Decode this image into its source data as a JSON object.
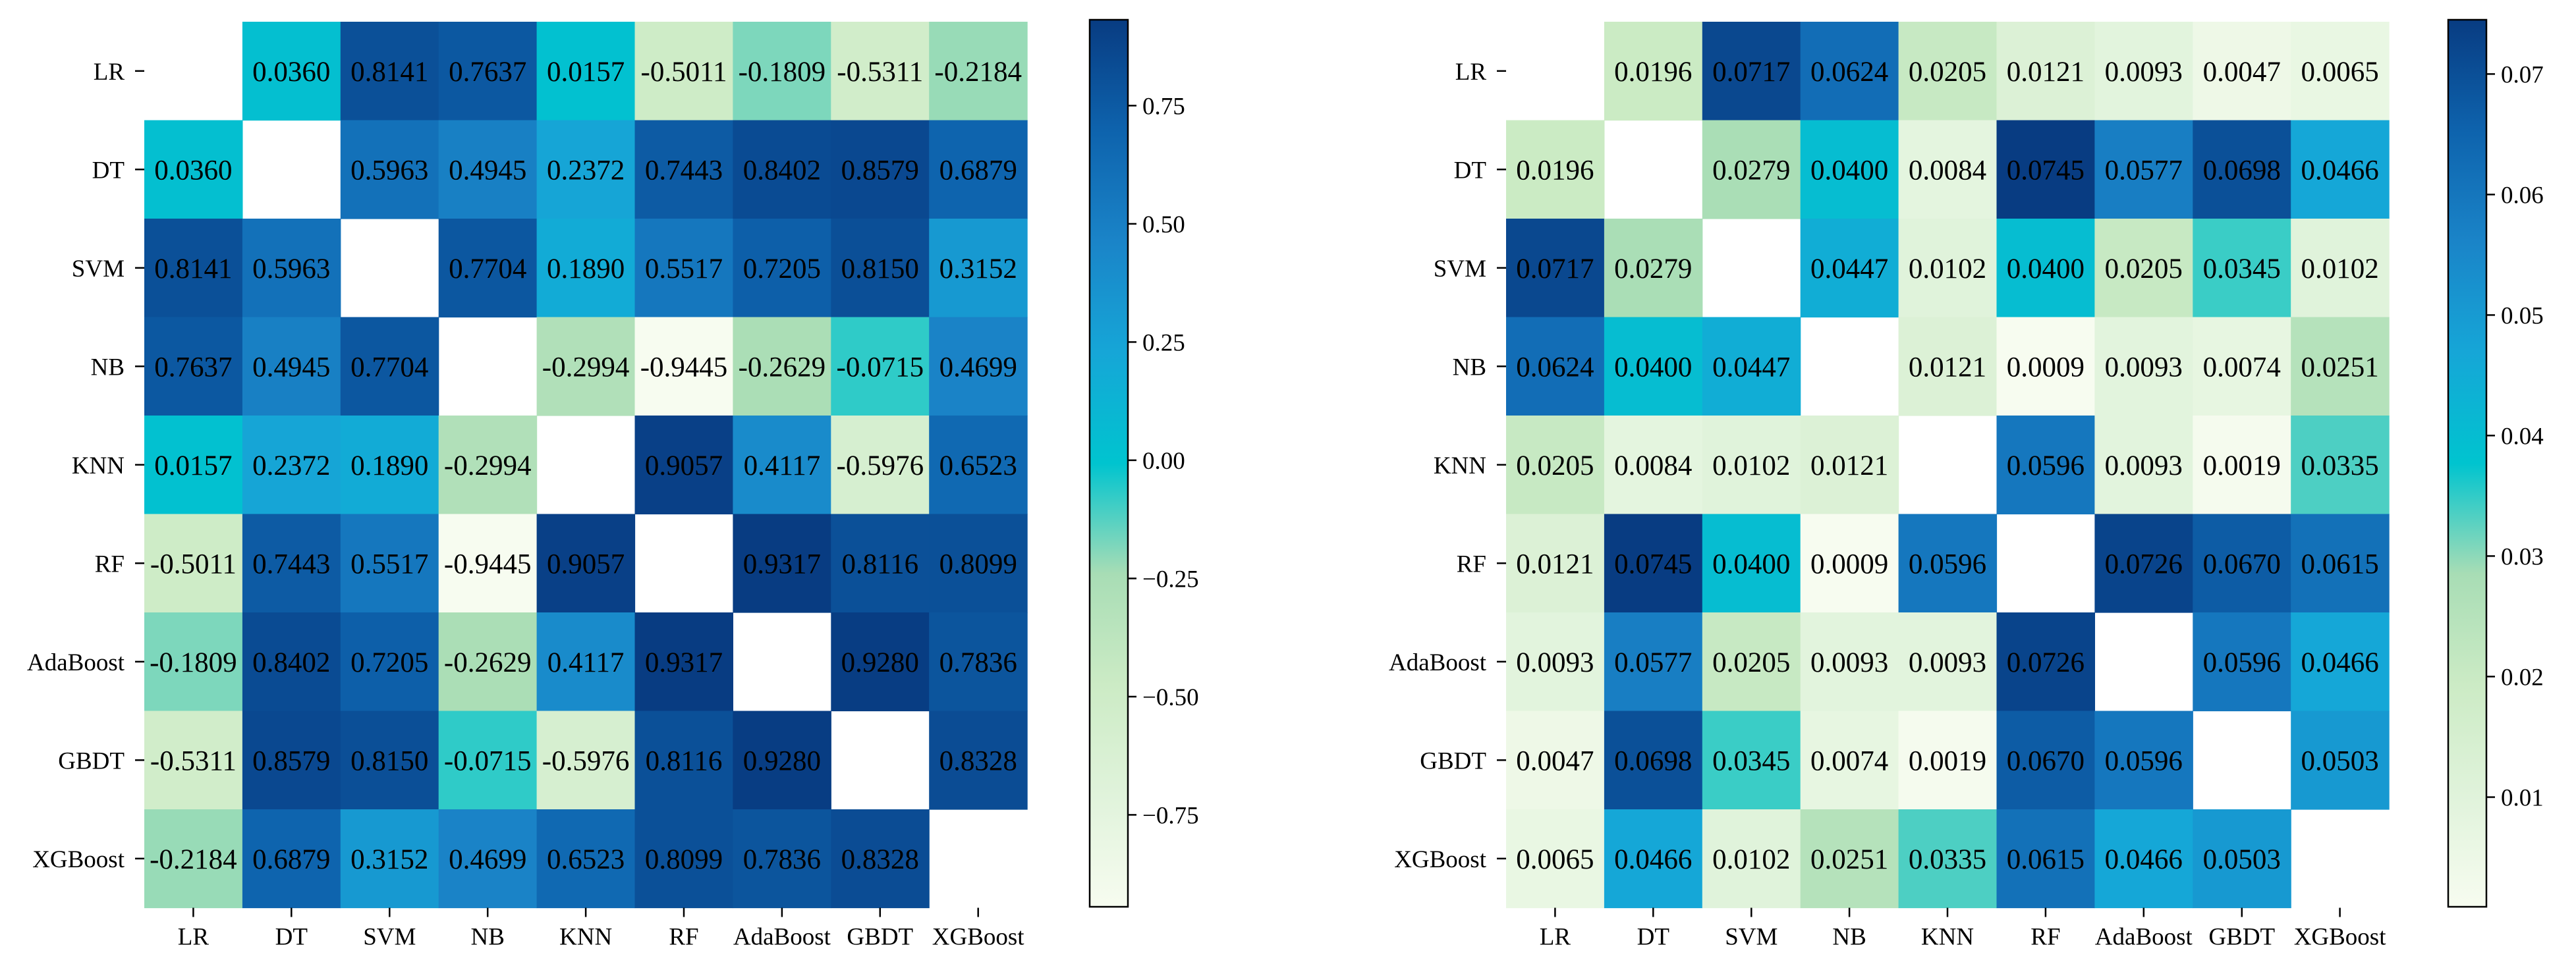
{
  "chart_data": [
    {
      "type": "heatmap",
      "title": "",
      "xlabel": "",
      "ylabel": "",
      "categories": [
        "LR",
        "DT",
        "SVM",
        "NB",
        "KNN",
        "RF",
        "AdaBoost",
        "GBDT",
        "XGBoost"
      ],
      "matrix": [
        [
          null,
          0.036,
          0.8141,
          0.7637,
          0.0157,
          -0.5011,
          -0.1809,
          -0.5311,
          -0.2184
        ],
        [
          0.036,
          null,
          0.5963,
          0.4945,
          0.2372,
          0.7443,
          0.8402,
          0.8579,
          0.6879
        ],
        [
          0.8141,
          0.5963,
          null,
          0.7704,
          0.189,
          0.5517,
          0.7205,
          0.815,
          0.3152
        ],
        [
          0.7637,
          0.4945,
          0.7704,
          null,
          -0.2994,
          -0.9445,
          -0.2629,
          -0.0715,
          0.4699
        ],
        [
          0.0157,
          0.2372,
          0.189,
          -0.2994,
          null,
          0.9057,
          0.4117,
          -0.5976,
          0.6523
        ],
        [
          -0.5011,
          0.7443,
          0.5517,
          -0.9445,
          0.9057,
          null,
          0.9317,
          0.8116,
          0.8099
        ],
        [
          -0.1809,
          0.8402,
          0.7205,
          -0.2629,
          0.4117,
          0.9317,
          null,
          0.928,
          0.7836
        ],
        [
          -0.5311,
          0.8579,
          0.815,
          -0.0715,
          -0.5976,
          0.8116,
          0.928,
          null,
          0.8328
        ],
        [
          -0.2184,
          0.6879,
          0.3152,
          0.4699,
          0.6523,
          0.8099,
          0.7836,
          0.8328,
          null
        ]
      ],
      "cell_labels": [
        [
          "",
          "0.0360",
          "0.8141",
          "0.7637",
          "0.0157",
          "-0.5011",
          "-0.1809",
          "-0.5311",
          "-0.2184"
        ],
        [
          "0.0360",
          "",
          "0.5963",
          "0.4945",
          "0.2372",
          "0.7443",
          "0.8402",
          "0.8579",
          "0.6879"
        ],
        [
          "0.8141",
          "0.5963",
          "",
          "0.7704",
          "0.1890",
          "0.5517",
          "0.7205",
          "0.8150",
          "0.3152"
        ],
        [
          "0.7637",
          "0.4945",
          "0.7704",
          "",
          "-0.2994",
          "-0.9445",
          "-0.2629",
          "-0.0715",
          "0.4699"
        ],
        [
          "0.0157",
          "0.2372",
          "0.1890",
          "-0.2994",
          "",
          "0.9057",
          "0.4117",
          "-0.5976",
          "0.6523"
        ],
        [
          "-0.5011",
          "0.7443",
          "0.5517",
          "-0.9445",
          "0.9057",
          "",
          "0.9317",
          "0.8116",
          "0.8099"
        ],
        [
          "-0.1809",
          "0.8402",
          "0.7205",
          "-0.2629",
          "0.4117",
          "0.9317",
          "",
          "0.9280",
          "0.7836"
        ],
        [
          "-0.5311",
          "0.8579",
          "0.8150",
          "-0.0715",
          "-0.5976",
          "0.8116",
          "0.9280",
          "",
          "0.8328"
        ],
        [
          "-0.2184",
          "0.6879",
          "0.3152",
          "0.4699",
          "0.6523",
          "0.8099",
          "0.7836",
          "0.8328",
          ""
        ]
      ],
      "colorbar": {
        "min": -0.9445,
        "max": 0.9317,
        "ticks": [
          -0.75,
          -0.5,
          -0.25,
          0.0,
          0.25,
          0.5,
          0.75
        ],
        "tick_labels": [
          "−0.75",
          "−0.50",
          "−0.25",
          "0.00",
          "0.25",
          "0.50",
          "0.75"
        ]
      },
      "colormap": "GnBu",
      "diagonal": "blank",
      "grid": false
    },
    {
      "type": "heatmap",
      "title": "",
      "xlabel": "",
      "ylabel": "",
      "categories": [
        "LR",
        "DT",
        "SVM",
        "NB",
        "KNN",
        "RF",
        "AdaBoost",
        "GBDT",
        "XGBoost"
      ],
      "matrix": [
        [
          null,
          0.0196,
          0.0717,
          0.0624,
          0.0205,
          0.0121,
          0.0093,
          0.0047,
          0.0065
        ],
        [
          0.0196,
          null,
          0.0279,
          0.04,
          0.0084,
          0.0745,
          0.0577,
          0.0698,
          0.0466
        ],
        [
          0.0717,
          0.0279,
          null,
          0.0447,
          0.0102,
          0.04,
          0.0205,
          0.0345,
          0.0102
        ],
        [
          0.0624,
          0.04,
          0.0447,
          null,
          0.0121,
          0.0009,
          0.0093,
          0.0074,
          0.0251
        ],
        [
          0.0205,
          0.0084,
          0.0102,
          0.0121,
          null,
          0.0596,
          0.0093,
          0.0019,
          0.0335
        ],
        [
          0.0121,
          0.0745,
          0.04,
          0.0009,
          0.0596,
          null,
          0.0726,
          0.067,
          0.0615
        ],
        [
          0.0093,
          0.0577,
          0.0205,
          0.0093,
          0.0093,
          0.0726,
          null,
          0.0596,
          0.0466
        ],
        [
          0.0047,
          0.0698,
          0.0345,
          0.0074,
          0.0019,
          0.067,
          0.0596,
          null,
          0.0503
        ],
        [
          0.0065,
          0.0466,
          0.0102,
          0.0251,
          0.0335,
          0.0615,
          0.0466,
          0.0503,
          null
        ]
      ],
      "cell_labels": [
        [
          "",
          "0.0196",
          "0.0717",
          "0.0624",
          "0.0205",
          "0.0121",
          "0.0093",
          "0.0047",
          "0.0065"
        ],
        [
          "0.0196",
          "",
          "0.0279",
          "0.0400",
          "0.0084",
          "0.0745",
          "0.0577",
          "0.0698",
          "0.0466"
        ],
        [
          "0.0717",
          "0.0279",
          "",
          "0.0447",
          "0.0102",
          "0.0400",
          "0.0205",
          "0.0345",
          "0.0102"
        ],
        [
          "0.0624",
          "0.0400",
          "0.0447",
          "",
          "0.0121",
          "0.0009",
          "0.0093",
          "0.0074",
          "0.0251"
        ],
        [
          "0.0205",
          "0.0084",
          "0.0102",
          "0.0121",
          "",
          "0.0596",
          "0.0093",
          "0.0019",
          "0.0335"
        ],
        [
          "0.0121",
          "0.0745",
          "0.0400",
          "0.0009",
          "0.0596",
          "",
          "0.0726",
          "0.0670",
          "0.0615"
        ],
        [
          "0.0093",
          "0.0577",
          "0.0205",
          "0.0093",
          "0.0093",
          "0.0726",
          "",
          "0.0596",
          "0.0466"
        ],
        [
          "0.0047",
          "0.0698",
          "0.0345",
          "0.0074",
          "0.0019",
          "0.0670",
          "0.0596",
          "",
          "0.0503"
        ],
        [
          "0.0065",
          "0.0466",
          "0.0102",
          "0.0251",
          "0.0335",
          "0.0615",
          "0.0466",
          "0.0503",
          ""
        ]
      ],
      "colorbar": {
        "min": 0.0009,
        "max": 0.0745,
        "ticks": [
          0.01,
          0.02,
          0.03,
          0.04,
          0.05,
          0.06,
          0.07
        ],
        "tick_labels": [
          "0.01",
          "0.02",
          "0.03",
          "0.04",
          "0.05",
          "0.06",
          "0.07"
        ]
      },
      "colormap": "GnBu",
      "diagonal": "blank",
      "grid": false
    }
  ]
}
